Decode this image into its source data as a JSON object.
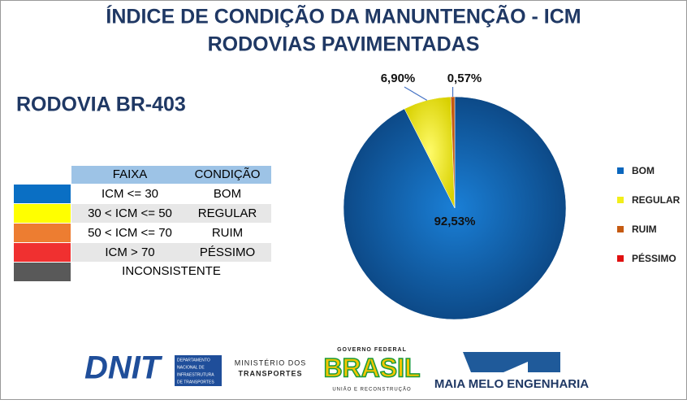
{
  "title": [
    "ÍNDICE DE CONDIÇÃO DA MANUNTENÇÃO - ICM",
    "RODOVIAS PAVIMENTADAS"
  ],
  "subtitle": "RODOVIA   BR-403",
  "table": {
    "header": [
      "FAIXA",
      "CONDIÇÃO"
    ],
    "rows": [
      [
        "ICM <= 30",
        "BOM"
      ],
      [
        "30 < ICM <= 50",
        "REGULAR"
      ],
      [
        "50 < ICM <= 70",
        "RUIM"
      ],
      [
        "ICM > 70",
        "PÉSSIMO"
      ],
      [
        "INCONSISTENTE"
      ]
    ]
  },
  "logos": {
    "dnit": "DNIT",
    "dnit_sub": [
      "DEPARTAMENTO",
      "NACIONAL DE",
      "INFRAESTRUTURA",
      "DE TRANSPORTES"
    ],
    "ministry": [
      "MINISTÉRIO DOS",
      "TRANSPORTES"
    ],
    "gov": "GOVERNO FEDERAL",
    "brasil": "BRASIL",
    "gov_sub": "UNIÃO E RECONSTRUÇÃO",
    "maia": "MAIA MELO ENGENHARIA"
  },
  "chart_data": {
    "type": "pie",
    "categories": [
      "BOM",
      "REGULAR",
      "RUIM",
      "PÉSSIMO"
    ],
    "values": [
      92.53,
      6.9,
      0.57,
      0
    ],
    "value_labels": [
      "92,53%",
      "6,90%",
      "0,57%",
      null
    ],
    "colors": [
      "#0a66bd",
      "#f2ee1a",
      "#c55a11",
      "#e01010"
    ],
    "legend": "right"
  }
}
